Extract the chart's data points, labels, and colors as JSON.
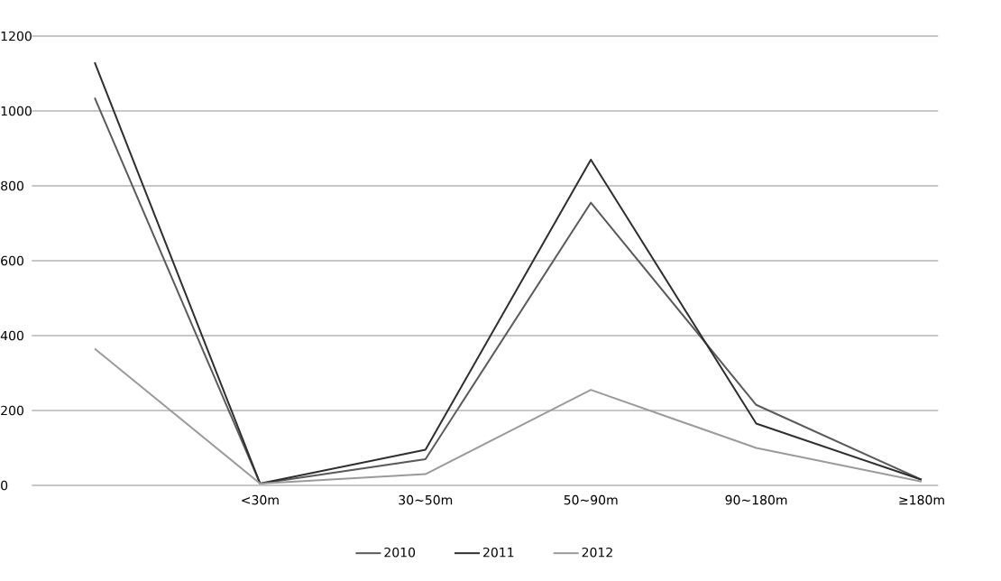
{
  "chart_data": {
    "type": "line",
    "categories": [
      null,
      "<30m",
      "30∼50m",
      "50∼90m",
      "90∼180m",
      "≥180m"
    ],
    "series": [
      {
        "name": "2010",
        "color": "#5a5a5a",
        "values": [
          1035,
          5,
          70,
          755,
          215,
          15
        ]
      },
      {
        "name": "2011",
        "color": "#2e2e2e",
        "values": [
          1130,
          5,
          95,
          870,
          165,
          15
        ]
      },
      {
        "name": "2012",
        "color": "#9a9a9a",
        "values": [
          365,
          5,
          30,
          255,
          100,
          10
        ]
      }
    ],
    "ylim": [
      0,
      1200
    ],
    "yticks": [
      0,
      200,
      400,
      600,
      800,
      1000,
      1200
    ],
    "grid": "y",
    "legend": "bottom",
    "marker": "none",
    "line_style": "solid"
  }
}
